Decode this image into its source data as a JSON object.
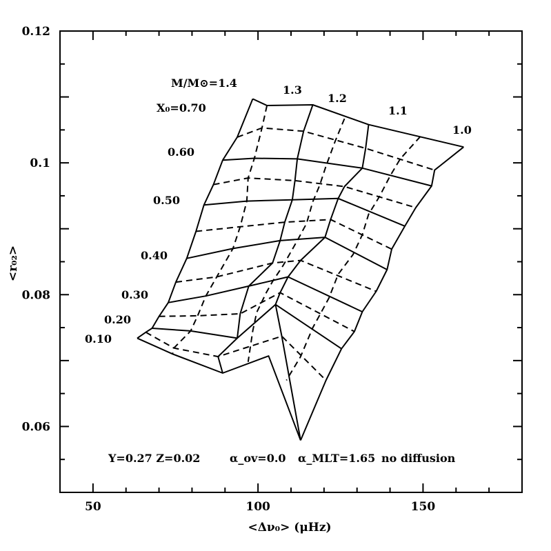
{
  "chart_data": {
    "type": "line",
    "title": "",
    "xlabel": "<Δν₀> (μHz)",
    "ylabel": "<r₀₂>",
    "xlim": [
      40,
      180
    ],
    "ylim": [
      0.05,
      0.12
    ],
    "x_ticks": [
      50,
      100,
      150
    ],
    "y_ticks": [
      0.06,
      0.08,
      0.1,
      0.12
    ],
    "x_tick_labels": [
      "50",
      "100",
      "150"
    ],
    "y_tick_labels": [
      "0.06",
      "0.08",
      "0.1",
      "0.12"
    ],
    "grid": false,
    "note": {
      "main": "Y=0.27 Z=0.02",
      "alpha_ov": "α_ov=0.0",
      "alpha_mlt": "α_MLT=1.65",
      "extra": "no diffusion"
    },
    "mass_header": "M/M⊙=1.4",
    "xc_header": "X₀=0.70",
    "mass_labels": [
      "1.3",
      "1.2",
      "1.1",
      "1.0"
    ],
    "xc_labels": [
      "0.60",
      "0.50",
      "0.40",
      "0.30",
      "0.20",
      "0.10"
    ],
    "series": [
      {
        "style": "solid",
        "points": [
          [
            98.4,
            0.1097
          ],
          [
            102.7,
            0.1087
          ],
          [
            116.6,
            0.1088
          ],
          [
            133.5,
            0.1058
          ],
          [
            162.3,
            0.1024
          ]
        ]
      },
      {
        "style": "solid",
        "points": [
          [
            89.3,
            0.1004
          ],
          [
            98.9,
            0.1007
          ],
          [
            111.9,
            0.1006
          ],
          [
            131.6,
            0.0992
          ],
          [
            152.6,
            0.0965
          ]
        ]
      },
      {
        "style": "solid",
        "points": [
          [
            83.6,
            0.0936
          ],
          [
            96.6,
            0.0942
          ],
          [
            110.4,
            0.0944
          ],
          [
            124.3,
            0.0946
          ],
          [
            144.5,
            0.0904
          ]
        ]
      },
      {
        "style": "solid",
        "points": [
          [
            78.4,
            0.0855
          ],
          [
            92.4,
            0.087
          ],
          [
            106.7,
            0.0882
          ],
          [
            120.3,
            0.0887
          ],
          [
            139.1,
            0.0838
          ]
        ]
      },
      {
        "style": "solid",
        "points": [
          [
            72.8,
            0.0788
          ],
          [
            84.2,
            0.0798
          ],
          [
            97.2,
            0.0813
          ],
          [
            109.1,
            0.0827
          ],
          [
            131.6,
            0.0774
          ]
        ]
      },
      {
        "style": "solid",
        "points": [
          [
            67.9,
            0.0749
          ],
          [
            79.6,
            0.0745
          ],
          [
            93.7,
            0.0734
          ],
          [
            105.3,
            0.0785
          ],
          [
            125.3,
            0.0718
          ]
        ]
      },
      {
        "style": "solid",
        "points": [
          [
            63.4,
            0.0734
          ],
          [
            74.1,
            0.071
          ],
          [
            89.3,
            0.0681
          ],
          [
            103.2,
            0.0707
          ],
          [
            112.9,
            0.0579
          ]
        ]
      },
      {
        "style": "solid",
        "points": [
          [
            98.4,
            0.1097
          ],
          [
            93.7,
            0.1039
          ],
          [
            89.3,
            0.1004
          ],
          [
            86.5,
            0.0967
          ],
          [
            83.6,
            0.0936
          ],
          [
            81.2,
            0.0896
          ],
          [
            78.4,
            0.0855
          ],
          [
            75.1,
            0.0819
          ],
          [
            72.8,
            0.0788
          ],
          [
            70.0,
            0.0767
          ],
          [
            67.9,
            0.0749
          ],
          [
            66.0,
            0.0743
          ],
          [
            63.4,
            0.0734
          ]
        ]
      },
      {
        "style": "solid",
        "points": [
          [
            116.6,
            0.1088
          ],
          [
            113.8,
            0.1048
          ],
          [
            111.9,
            0.1006
          ],
          [
            111.2,
            0.0973
          ],
          [
            110.4,
            0.0944
          ],
          [
            108.1,
            0.091
          ],
          [
            106.7,
            0.0882
          ],
          [
            104.4,
            0.0848
          ],
          [
            97.2,
            0.0813
          ],
          [
            94.6,
            0.0771
          ],
          [
            93.7,
            0.0734
          ],
          [
            87.9,
            0.0706
          ],
          [
            89.3,
            0.0681
          ]
        ]
      },
      {
        "style": "solid",
        "points": [
          [
            133.5,
            0.1058
          ],
          [
            132.6,
            0.1022
          ],
          [
            131.6,
            0.0992
          ],
          [
            126.2,
            0.0964
          ],
          [
            124.3,
            0.0946
          ],
          [
            122.0,
            0.0914
          ],
          [
            120.3,
            0.0887
          ],
          [
            112.9,
            0.0852
          ],
          [
            109.1,
            0.0827
          ],
          [
            106.7,
            0.0803
          ],
          [
            105.3,
            0.0785
          ],
          [
            107.2,
            0.0737
          ],
          [
            112.9,
            0.0579
          ]
        ]
      },
      {
        "style": "solid",
        "points": [
          [
            162.3,
            0.1024
          ],
          [
            153.5,
            0.0989
          ],
          [
            152.6,
            0.0965
          ],
          [
            147.8,
            0.0932
          ],
          [
            144.5,
            0.0904
          ],
          [
            140.5,
            0.0869
          ],
          [
            139.1,
            0.0838
          ],
          [
            135.8,
            0.0805
          ],
          [
            131.6,
            0.0774
          ],
          [
            129.2,
            0.0744
          ],
          [
            125.3,
            0.0718
          ],
          [
            120.6,
            0.067
          ],
          [
            112.9,
            0.0579
          ]
        ]
      },
      {
        "style": "dashed",
        "points": [
          [
            102.7,
            0.1087
          ],
          [
            101.2,
            0.1053
          ],
          [
            98.9,
            0.1007
          ],
          [
            97.0,
            0.0977
          ],
          [
            96.6,
            0.0942
          ],
          [
            94.6,
            0.0903
          ],
          [
            92.4,
            0.087
          ],
          [
            87.5,
            0.0827
          ],
          [
            84.2,
            0.0798
          ],
          [
            81.7,
            0.0768
          ],
          [
            79.6,
            0.0745
          ],
          [
            74.5,
            0.0719
          ],
          [
            74.1,
            0.071
          ]
        ]
      },
      {
        "style": "dashed",
        "points": [
          [
            126.2,
            0.1067
          ],
          [
            123.4,
            0.1033
          ],
          [
            120.6,
            0.0995
          ],
          [
            118.7,
            0.0966
          ],
          [
            116.6,
            0.0941
          ],
          [
            114.7,
            0.0908
          ],
          [
            111.9,
            0.0882
          ],
          [
            107.7,
            0.0845
          ],
          [
            104.4,
            0.082
          ],
          [
            102.5,
            0.0803
          ],
          [
            99.6,
            0.0773
          ],
          [
            98.4,
            0.0745
          ],
          [
            97.0,
            0.0698
          ]
        ]
      },
      {
        "style": "dashed",
        "points": [
          [
            149.2,
            0.104
          ],
          [
            143.1,
            0.1006
          ],
          [
            140.0,
            0.098
          ],
          [
            136.8,
            0.0949
          ],
          [
            133.5,
            0.0922
          ],
          [
            131.6,
            0.0891
          ],
          [
            128.8,
            0.0861
          ],
          [
            124.3,
            0.0831
          ],
          [
            121.5,
            0.0795
          ],
          [
            118.7,
            0.0769
          ],
          [
            116.6,
            0.075
          ],
          [
            112.9,
            0.0706
          ],
          [
            108.6,
            0.067
          ]
        ]
      },
      {
        "style": "dashed",
        "points": [
          [
            93.7,
            0.1039
          ],
          [
            101.2,
            0.1053
          ],
          [
            113.8,
            0.1048
          ],
          [
            132.6,
            0.1022
          ],
          [
            153.5,
            0.0989
          ]
        ]
      },
      {
        "style": "dashed",
        "points": [
          [
            86.5,
            0.0967
          ],
          [
            97.0,
            0.0977
          ],
          [
            111.2,
            0.0973
          ],
          [
            126.2,
            0.0964
          ],
          [
            147.8,
            0.0932
          ]
        ]
      },
      {
        "style": "dashed",
        "points": [
          [
            81.2,
            0.0896
          ],
          [
            94.6,
            0.0903
          ],
          [
            108.1,
            0.091
          ],
          [
            122.0,
            0.0914
          ],
          [
            140.5,
            0.0869
          ]
        ]
      },
      {
        "style": "dashed",
        "points": [
          [
            75.1,
            0.0819
          ],
          [
            87.5,
            0.0827
          ],
          [
            104.4,
            0.0848
          ],
          [
            112.9,
            0.0852
          ],
          [
            135.8,
            0.0805
          ]
        ]
      },
      {
        "style": "dashed",
        "points": [
          [
            70.0,
            0.0767
          ],
          [
            81.7,
            0.0768
          ],
          [
            94.6,
            0.0771
          ],
          [
            106.7,
            0.0803
          ],
          [
            129.2,
            0.0744
          ]
        ]
      },
      {
        "style": "dashed",
        "points": [
          [
            66.0,
            0.0743
          ],
          [
            74.5,
            0.0719
          ],
          [
            87.9,
            0.0706
          ],
          [
            107.2,
            0.0737
          ],
          [
            120.6,
            0.067
          ]
        ]
      }
    ],
    "color": "#000000"
  }
}
